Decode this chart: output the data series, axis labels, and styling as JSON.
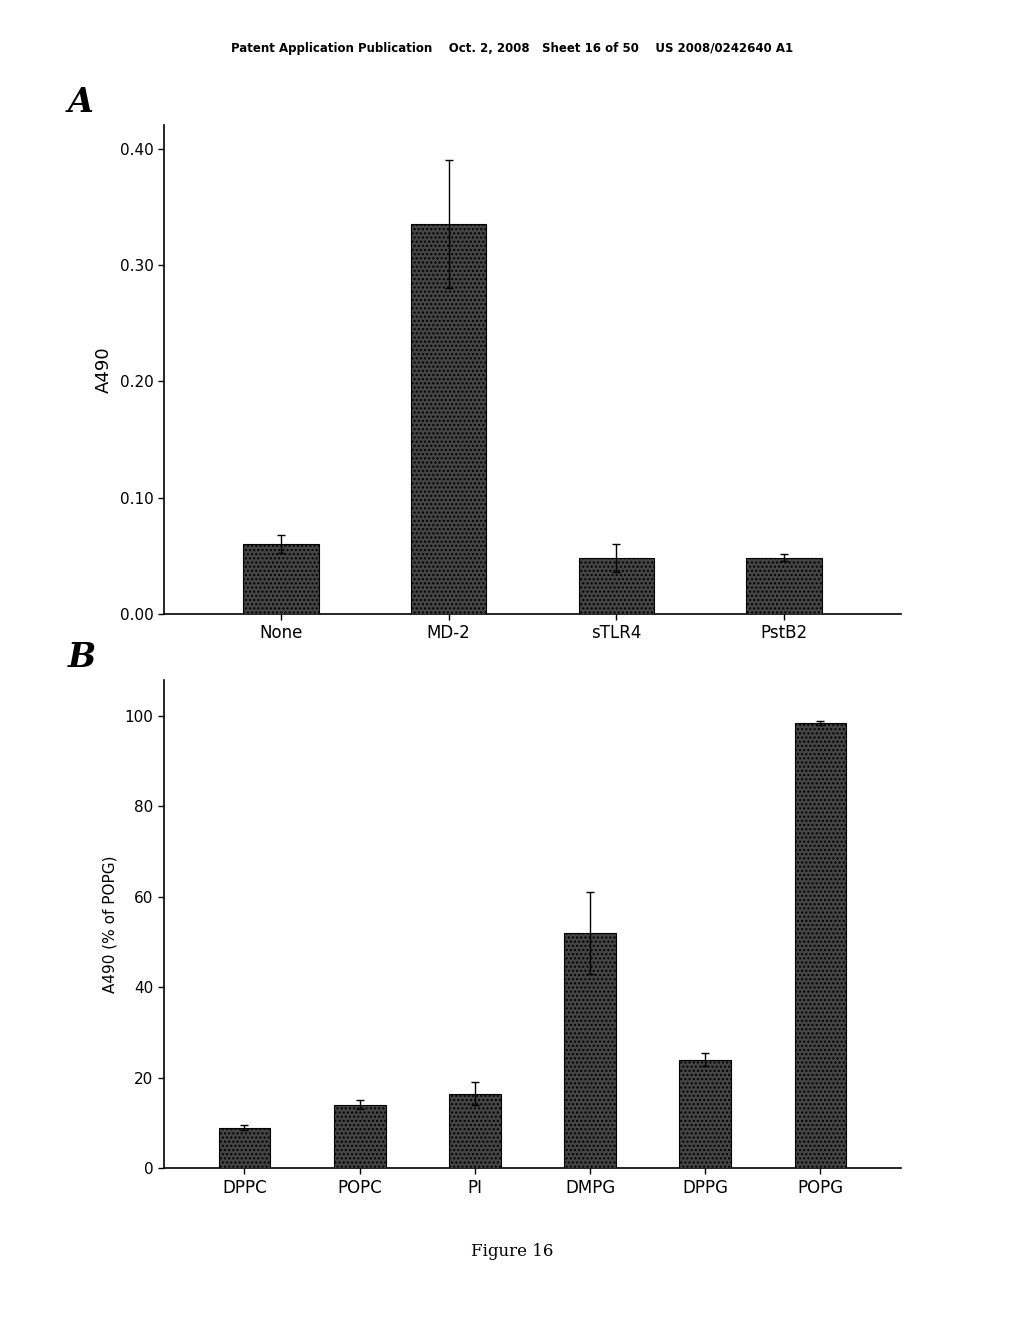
{
  "panel_A": {
    "categories": [
      "None",
      "MD-2",
      "sTLR4",
      "PstB2"
    ],
    "values": [
      0.06,
      0.335,
      0.048,
      0.048
    ],
    "errors": [
      0.008,
      0.055,
      0.012,
      0.003
    ],
    "ylabel": "A490",
    "ylim": [
      0.0,
      0.42
    ],
    "yticks": [
      0.0,
      0.1,
      0.2,
      0.3,
      0.4
    ],
    "label": "A"
  },
  "panel_B": {
    "categories": [
      "DPPC",
      "POPC",
      "PI",
      "DMPG",
      "DPPG",
      "POPG"
    ],
    "values": [
      9.0,
      14.0,
      16.5,
      52.0,
      24.0,
      98.5
    ],
    "errors": [
      0.5,
      1.0,
      2.5,
      9.0,
      1.5,
      0.5
    ],
    "ylabel": "A490 (% of POPG)",
    "ylim": [
      0,
      108
    ],
    "yticks": [
      0,
      20,
      40,
      60,
      80,
      100
    ],
    "label": "B"
  },
  "bar_color": "#444444",
  "bar_width": 0.45,
  "header_text": "Patent Application Publication    Oct. 2, 2008   Sheet 16 of 50    US 2008/0242640 A1",
  "figure_caption": "Figure 16",
  "background_color": "#ffffff",
  "font_size": 12
}
